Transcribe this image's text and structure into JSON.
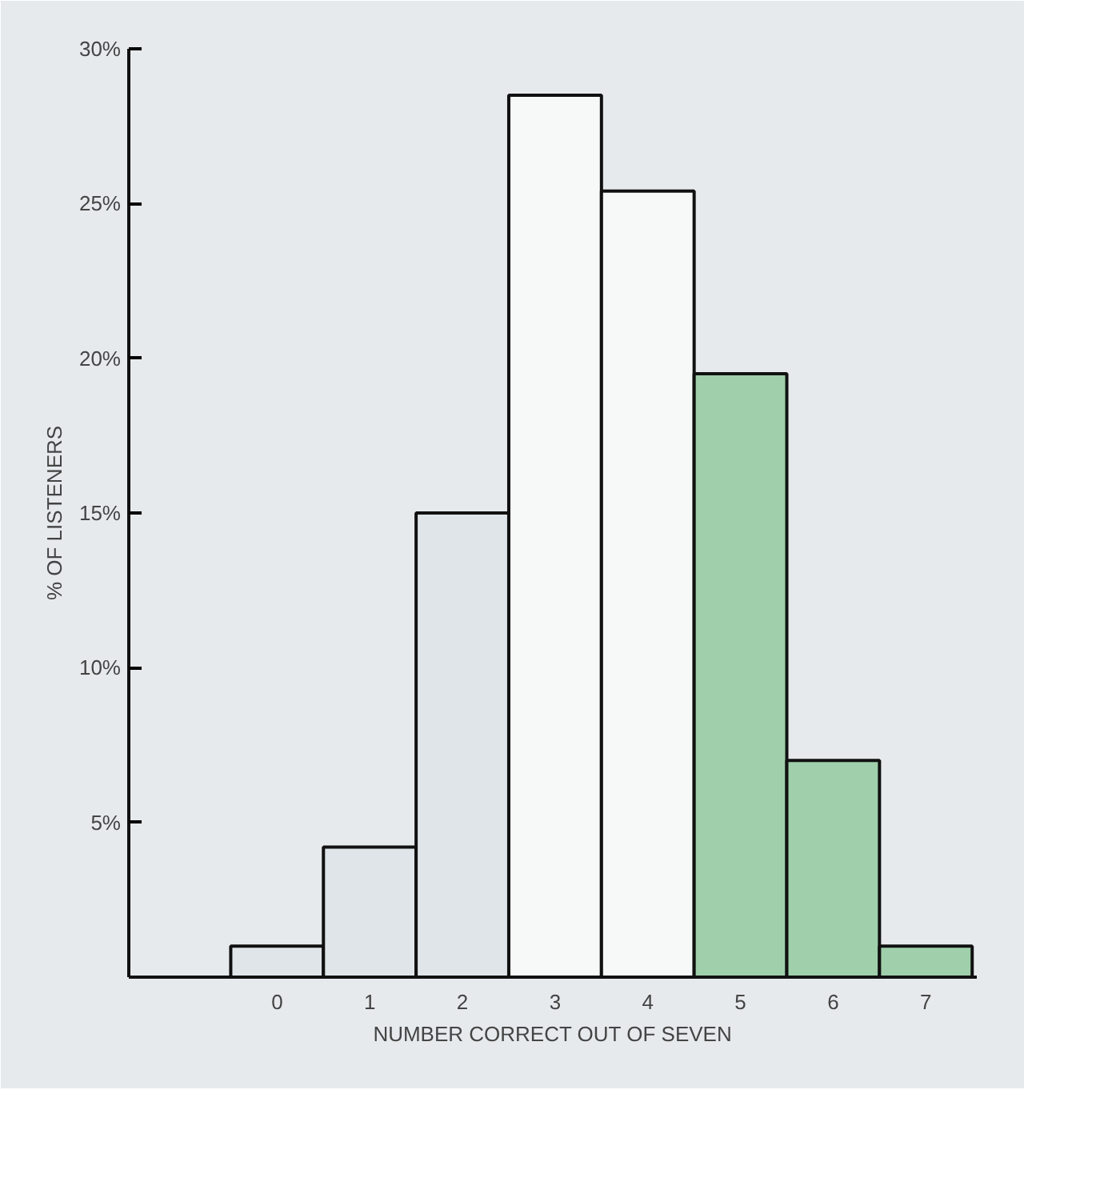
{
  "chart_data": {
    "type": "bar",
    "categories": [
      "0",
      "1",
      "2",
      "3",
      "4",
      "5",
      "6",
      "7"
    ],
    "values": [
      1.0,
      4.2,
      15.0,
      28.5,
      25.4,
      19.5,
      7.0,
      1.0
    ],
    "colors": [
      "#dfe5e8",
      "#dfe5e8",
      "#dfe5e8",
      "#f7f8f8",
      "#f7f8f8",
      "#9fd0ab",
      "#9fd0ab",
      "#9fd0ab"
    ],
    "xlabel": "NUMBER CORRECT OUT OF SEVEN",
    "ylabel": "% OF LISTENERS",
    "ylim": [
      0,
      30
    ],
    "yticks": [
      {
        "value": 5,
        "label": "5%"
      },
      {
        "value": 10,
        "label": "10%"
      },
      {
        "value": 15,
        "label": "15%"
      },
      {
        "value": 20,
        "label": "20%"
      },
      {
        "value": 25,
        "label": "25%"
      },
      {
        "value": 30,
        "label": "30%"
      }
    ],
    "grid": false
  }
}
